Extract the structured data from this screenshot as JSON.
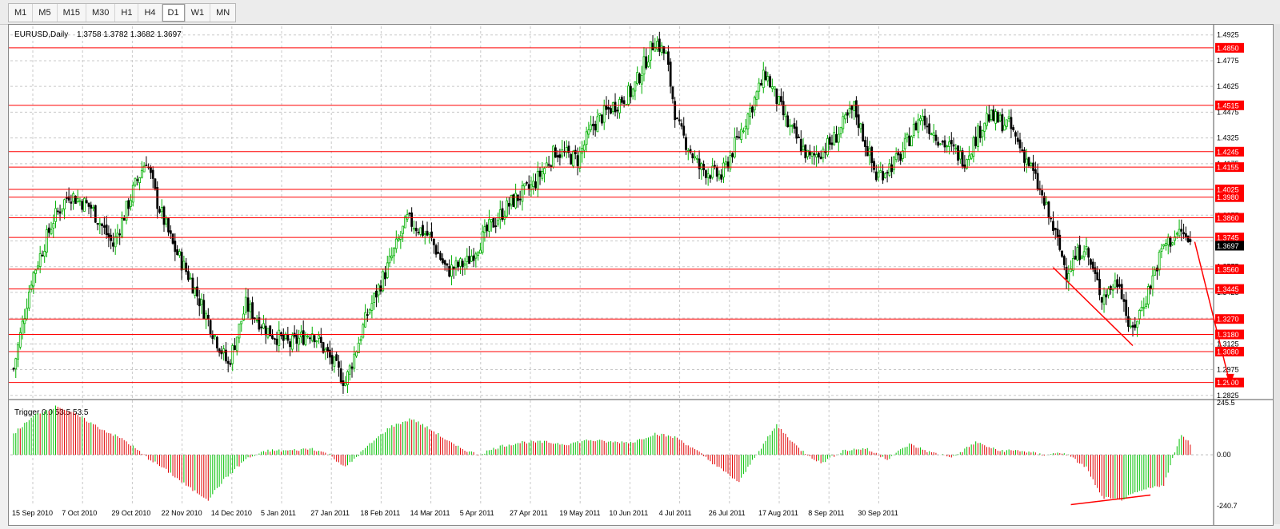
{
  "timeframes": [
    "M1",
    "M5",
    "M15",
    "M30",
    "H1",
    "H4",
    "D1",
    "W1",
    "MN"
  ],
  "active_timeframe": "D1",
  "main_title": "EURUSD,Daily",
  "ohlc": "1.3758 1.3782 1.3682 1.3697",
  "indicator_title": "Trigger 0.0 53.5 53.5",
  "colors": {
    "up": "#00b000",
    "down": "#000000",
    "hline": "#ff0000",
    "label_bg": "#ff0000",
    "current_bg": "#000000",
    "grid": "#c8c8c8",
    "hist_pos": "#00c000",
    "hist_neg": "#e00000"
  },
  "chart_data": [
    {
      "type": "candlestick",
      "symbol": "EURUSD",
      "timeframe": "Daily",
      "price_axis_ticks": [
        "1.4925",
        "1.4775",
        "1.4625",
        "1.4475",
        "1.4325",
        "1.4175",
        "1.4025",
        "1.3875",
        "1.3725",
        "1.3575",
        "1.3425",
        "1.3275",
        "1.3125",
        "1.2975",
        "1.2825"
      ],
      "ylim": [
        1.281,
        1.4975
      ],
      "time_axis_labels": [
        "15 Sep 2010",
        "7 Oct 2010",
        "29 Oct 2010",
        "22 Nov 2010",
        "14 Dec 2010",
        "5 Jan 2011",
        "27 Jan 2011",
        "18 Feb 2011",
        "14 Mar 2011",
        "5 Apr 2011",
        "27 Apr 2011",
        "19 May 2011",
        "10 Jun 2011",
        "4 Jul 2011",
        "26 Jul 2011",
        "17 Aug 2011",
        "8 Sep 2011",
        "30 Sep 2011"
      ],
      "horizontal_levels": [
        "1.4850",
        "1.4515",
        "1.4245",
        "1.4155",
        "1.4025",
        "1.3980",
        "1.3860",
        "1.3745",
        "1.3560",
        "1.3445",
        "1.3270",
        "1.3180",
        "1.3080",
        "1.2900"
      ],
      "current_price": "1.3697",
      "approx_closes": [
        [
          0,
          1.298
        ],
        [
          8,
          1.35
        ],
        [
          18,
          1.385
        ],
        [
          25,
          1.4
        ],
        [
          35,
          1.392
        ],
        [
          45,
          1.37
        ],
        [
          55,
          1.405
        ],
        [
          60,
          1.42
        ],
        [
          65,
          1.395
        ],
        [
          72,
          1.37
        ],
        [
          80,
          1.35
        ],
        [
          90,
          1.32
        ],
        [
          97,
          1.3
        ],
        [
          105,
          1.335
        ],
        [
          115,
          1.32
        ],
        [
          125,
          1.312
        ],
        [
          135,
          1.32
        ],
        [
          145,
          1.3
        ],
        [
          150,
          1.29
        ],
        [
          160,
          1.33
        ],
        [
          170,
          1.36
        ],
        [
          178,
          1.385
        ],
        [
          188,
          1.375
        ],
        [
          196,
          1.355
        ],
        [
          205,
          1.36
        ],
        [
          215,
          1.38
        ],
        [
          225,
          1.395
        ],
        [
          235,
          1.405
        ],
        [
          245,
          1.425
        ],
        [
          255,
          1.42
        ],
        [
          262,
          1.44
        ],
        [
          270,
          1.45
        ],
        [
          280,
          1.46
        ],
        [
          290,
          1.49
        ],
        [
          295,
          1.48
        ],
        [
          300,
          1.44
        ],
        [
          310,
          1.415
        ],
        [
          320,
          1.41
        ],
        [
          330,
          1.44
        ],
        [
          340,
          1.47
        ],
        [
          350,
          1.44
        ],
        [
          360,
          1.42
        ],
        [
          370,
          1.43
        ],
        [
          380,
          1.45
        ],
        [
          390,
          1.41
        ],
        [
          400,
          1.42
        ],
        [
          410,
          1.445
        ],
        [
          420,
          1.43
        ],
        [
          430,
          1.42
        ],
        [
          440,
          1.445
        ],
        [
          450,
          1.44
        ],
        [
          460,
          1.415
        ],
        [
          470,
          1.38
        ],
        [
          476,
          1.355
        ],
        [
          484,
          1.37
        ],
        [
          492,
          1.34
        ],
        [
          500,
          1.35
        ],
        [
          505,
          1.318
        ],
        [
          512,
          1.34
        ],
        [
          520,
          1.37
        ],
        [
          528,
          1.378
        ],
        [
          532,
          1.37
        ]
      ]
    },
    {
      "type": "histogram",
      "name": "Trigger",
      "params": "0.0 53.5 53.5",
      "value_axis_ticks": [
        "245.5",
        "0.00",
        "-240.7"
      ],
      "ylim": [
        -240.7,
        245.5
      ],
      "approx_values": [
        [
          0,
          100
        ],
        [
          10,
          190
        ],
        [
          20,
          230
        ],
        [
          30,
          180
        ],
        [
          40,
          120
        ],
        [
          50,
          70
        ],
        [
          60,
          -10
        ],
        [
          70,
          -80
        ],
        [
          80,
          -160
        ],
        [
          88,
          -210
        ],
        [
          95,
          -120
        ],
        [
          105,
          -20
        ],
        [
          115,
          20
        ],
        [
          125,
          20
        ],
        [
          135,
          30
        ],
        [
          143,
          0
        ],
        [
          150,
          -60
        ],
        [
          160,
          40
        ],
        [
          170,
          130
        ],
        [
          180,
          170
        ],
        [
          190,
          110
        ],
        [
          200,
          40
        ],
        [
          210,
          0
        ],
        [
          220,
          40
        ],
        [
          230,
          60
        ],
        [
          240,
          60
        ],
        [
          250,
          50
        ],
        [
          260,
          70
        ],
        [
          270,
          60
        ],
        [
          280,
          60
        ],
        [
          290,
          100
        ],
        [
          300,
          80
        ],
        [
          310,
          10
        ],
        [
          320,
          -70
        ],
        [
          328,
          -130
        ],
        [
          335,
          -10
        ],
        [
          345,
          140
        ],
        [
          355,
          30
        ],
        [
          365,
          -40
        ],
        [
          375,
          20
        ],
        [
          385,
          30
        ],
        [
          395,
          -20
        ],
        [
          405,
          50
        ],
        [
          415,
          10
        ],
        [
          425,
          -10
        ],
        [
          435,
          60
        ],
        [
          445,
          20
        ],
        [
          455,
          20
        ],
        [
          465,
          0
        ],
        [
          475,
          10
        ],
        [
          485,
          -60
        ],
        [
          492,
          -200
        ],
        [
          500,
          -215
        ],
        [
          510,
          -170
        ],
        [
          520,
          -140
        ],
        [
          528,
          100
        ],
        [
          532,
          50
        ]
      ]
    }
  ]
}
